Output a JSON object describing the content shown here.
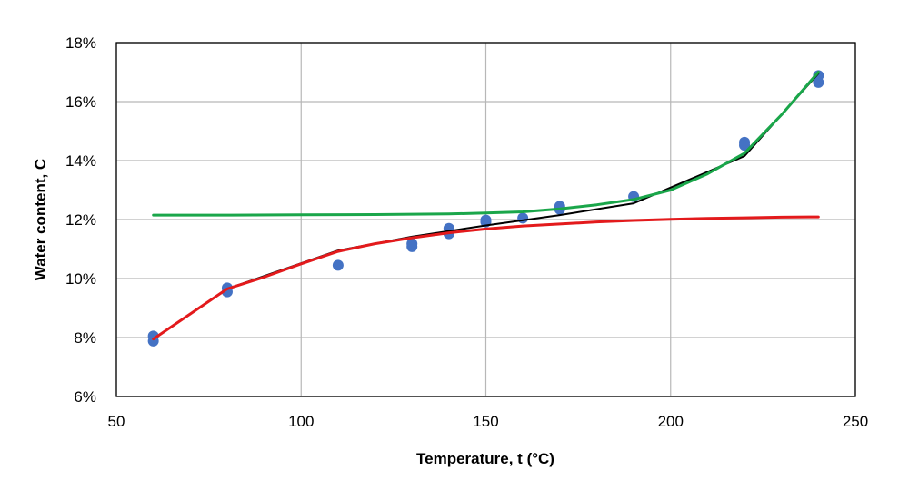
{
  "chart_data": {
    "type": "scatter",
    "title": "",
    "xlabel": "Temperature, t (°C)",
    "ylabel": "Water content, C",
    "xlim": [
      50,
      250
    ],
    "ylim": [
      0.06,
      0.18
    ],
    "x_ticks": [
      50,
      100,
      150,
      200,
      250
    ],
    "y_ticks": [
      0.06,
      0.08,
      0.1,
      0.12,
      0.14,
      0.16,
      0.18
    ],
    "x_tick_labels": [
      "50",
      "100",
      "150",
      "200",
      "250"
    ],
    "y_tick_labels": [
      "6%",
      "8%",
      "10%",
      "12%",
      "14%",
      "16%",
      "18%"
    ],
    "grid": true,
    "legend": "none",
    "colors": {
      "measured": "#4472c4",
      "black_curve": "#000000",
      "red_curve": "#e31a1c",
      "green_curve": "#1aa64a"
    },
    "series": [
      {
        "name": "measured",
        "kind": "scatter",
        "color_key": "measured",
        "points": [
          [
            60,
            0.0805
          ],
          [
            60,
            0.0788
          ],
          [
            80,
            0.0968
          ],
          [
            80,
            0.0955
          ],
          [
            110,
            0.1045
          ],
          [
            130,
            0.1118
          ],
          [
            130,
            0.1108
          ],
          [
            140,
            0.117
          ],
          [
            140,
            0.1152
          ],
          [
            150,
            0.1198
          ],
          [
            150,
            0.1192
          ],
          [
            160,
            0.1205
          ],
          [
            170,
            0.1245
          ],
          [
            170,
            0.1235
          ],
          [
            190,
            0.1278
          ],
          [
            220,
            0.1462
          ],
          [
            220,
            0.1452
          ],
          [
            240,
            0.1688
          ],
          [
            240,
            0.1665
          ]
        ]
      },
      {
        "name": "black curve",
        "kind": "line",
        "color_key": "black_curve",
        "points": [
          [
            60,
            0.0795
          ],
          [
            80,
            0.0965
          ],
          [
            110,
            0.1095
          ],
          [
            130,
            0.1142
          ],
          [
            150,
            0.118
          ],
          [
            170,
            0.1215
          ],
          [
            190,
            0.1255
          ],
          [
            220,
            0.1415
          ],
          [
            240,
            0.1695
          ]
        ]
      },
      {
        "name": "red curve",
        "kind": "line",
        "color_key": "red_curve",
        "points": [
          [
            60,
            0.0795
          ],
          [
            70,
            0.088
          ],
          [
            80,
            0.0965
          ],
          [
            90,
            0.1005
          ],
          [
            100,
            0.105
          ],
          [
            110,
            0.1092
          ],
          [
            120,
            0.1118
          ],
          [
            130,
            0.1138
          ],
          [
            140,
            0.1155
          ],
          [
            150,
            0.1168
          ],
          [
            160,
            0.1178
          ],
          [
            170,
            0.1185
          ],
          [
            180,
            0.1192
          ],
          [
            190,
            0.1197
          ],
          [
            200,
            0.1201
          ],
          [
            210,
            0.1204
          ],
          [
            220,
            0.1206
          ],
          [
            230,
            0.1208
          ],
          [
            240,
            0.1209
          ]
        ]
      },
      {
        "name": "green curve",
        "kind": "line",
        "color_key": "green_curve",
        "points": [
          [
            60,
            0.1215
          ],
          [
            80,
            0.1215
          ],
          [
            100,
            0.1216
          ],
          [
            120,
            0.1217
          ],
          [
            140,
            0.1219
          ],
          [
            150,
            0.1222
          ],
          [
            160,
            0.1226
          ],
          [
            170,
            0.1236
          ],
          [
            180,
            0.125
          ],
          [
            190,
            0.1268
          ],
          [
            200,
            0.13
          ],
          [
            210,
            0.1355
          ],
          [
            220,
            0.1425
          ],
          [
            230,
            0.1555
          ],
          [
            240,
            0.17
          ]
        ]
      }
    ]
  }
}
